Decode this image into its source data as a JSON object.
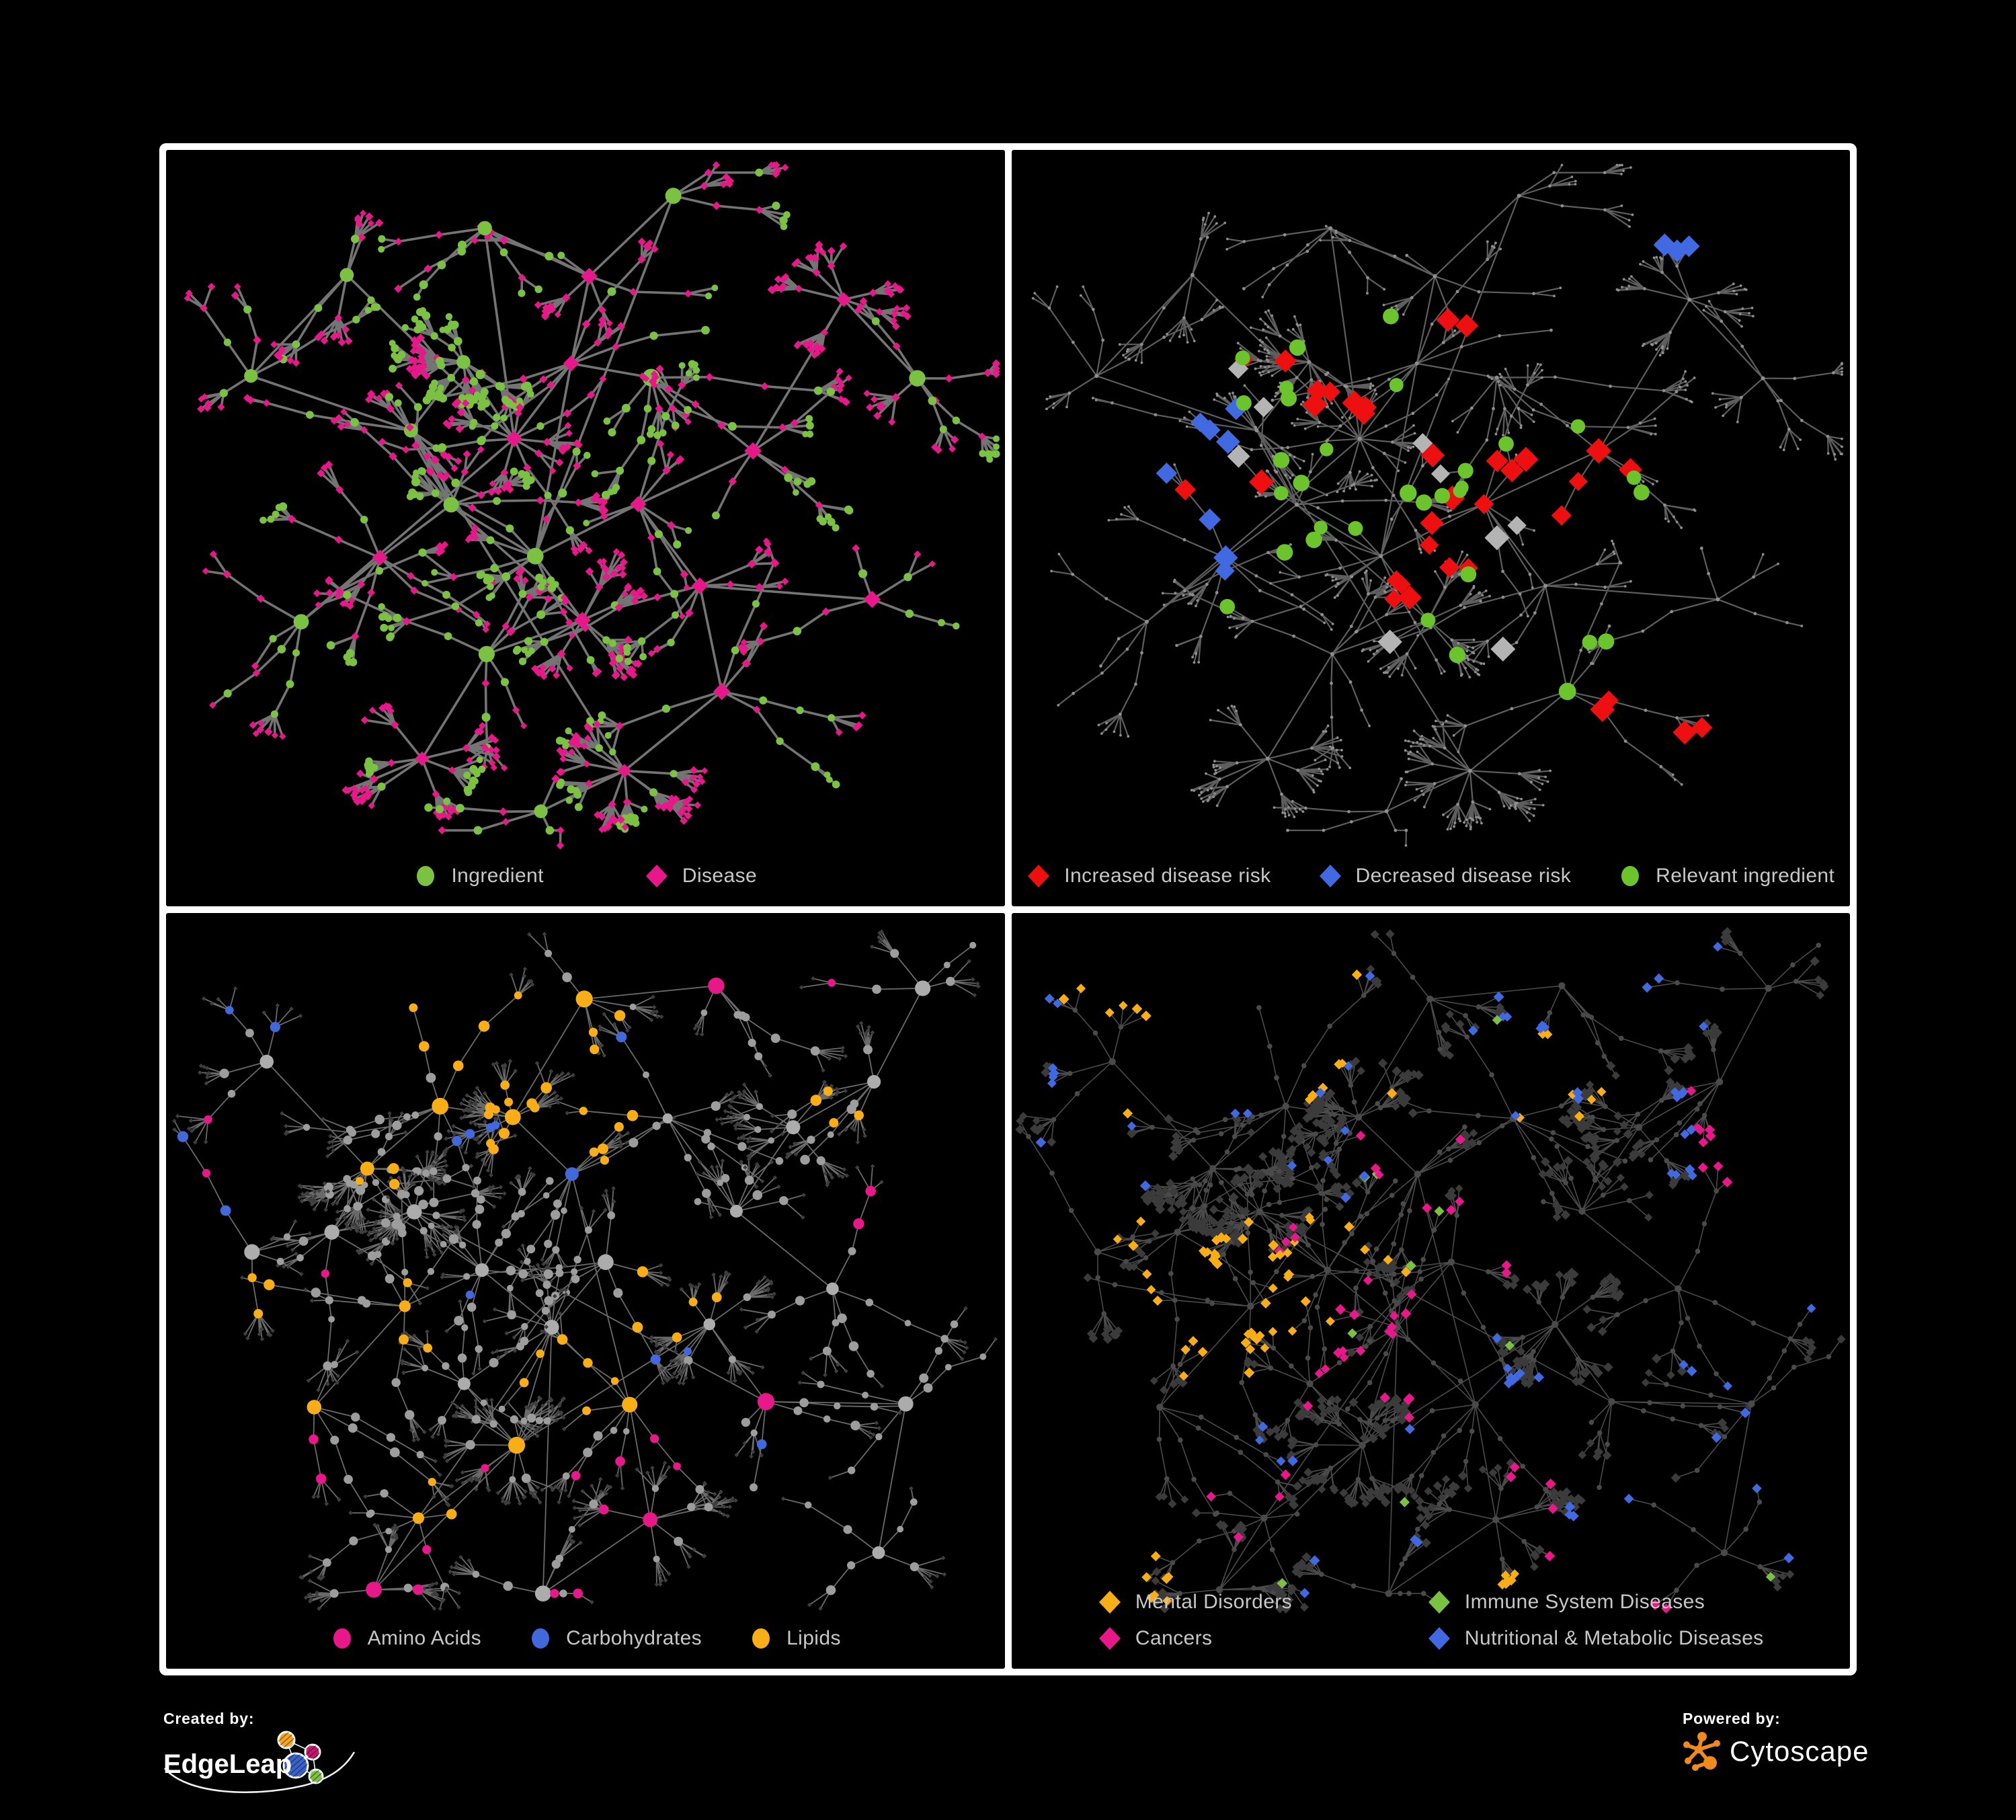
{
  "figure": {
    "background": "#000000",
    "frame_color": "#ffffff"
  },
  "footer": {
    "created_by": {
      "label": "Created by:",
      "brand": "EdgeLeap",
      "logo_colors": {
        "orange": "#F5A623",
        "magenta": "#C2186B",
        "blue": "#3A62C9",
        "green": "#7CC242"
      }
    },
    "powered_by": {
      "label": "Powered by:",
      "brand": "Cytoscape",
      "logo_color": "#EF8A1C"
    }
  },
  "layouts": {
    "A": {
      "seed": 20070,
      "cross_links": 30,
      "anchors": [
        [
          0.36,
          0.28,
          10,
          2
        ],
        [
          0.3,
          0.37,
          7,
          0
        ],
        [
          0.42,
          0.38,
          8,
          0
        ],
        [
          0.48,
          0.28,
          6,
          0
        ],
        [
          0.34,
          0.47,
          7,
          0
        ],
        [
          0.26,
          0.54,
          6,
          0
        ],
        [
          0.44,
          0.54,
          7,
          0
        ],
        [
          0.56,
          0.47,
          6,
          0
        ],
        [
          0.5,
          0.62,
          7,
          1
        ],
        [
          0.38,
          0.66,
          6,
          0
        ],
        [
          0.58,
          0.3,
          6,
          0
        ],
        [
          0.5,
          0.17,
          5,
          0
        ],
        [
          0.38,
          0.1,
          4,
          0
        ],
        [
          0.64,
          0.57,
          5,
          0
        ],
        [
          0.7,
          0.4,
          5,
          0
        ],
        [
          0.8,
          0.2,
          6,
          1
        ],
        [
          0.9,
          0.3,
          5,
          0
        ],
        [
          0.66,
          0.72,
          5,
          0
        ],
        [
          0.55,
          0.82,
          9,
          1
        ],
        [
          0.3,
          0.8,
          7,
          1
        ],
        [
          0.16,
          0.62,
          5,
          0
        ],
        [
          0.1,
          0.3,
          4,
          0
        ],
        [
          0.22,
          0.16,
          4,
          0
        ],
        [
          0.6,
          0.06,
          3,
          0
        ],
        [
          0.84,
          0.6,
          4,
          0
        ],
        [
          0.44,
          0.88,
          4,
          0
        ]
      ]
    },
    "B": {
      "seed": 77013,
      "cross_links": 40,
      "anchors": [
        [
          0.24,
          0.33,
          9,
          2
        ],
        [
          0.3,
          0.4,
          8,
          2
        ],
        [
          0.2,
          0.42,
          7,
          0
        ],
        [
          0.33,
          0.25,
          7,
          0
        ],
        [
          0.42,
          0.27,
          9,
          2
        ],
        [
          0.48,
          0.35,
          7,
          0
        ],
        [
          0.38,
          0.47,
          8,
          0
        ],
        [
          0.28,
          0.52,
          6,
          0
        ],
        [
          0.46,
          0.55,
          7,
          0
        ],
        [
          0.52,
          0.46,
          6,
          0
        ],
        [
          0.42,
          0.7,
          10,
          1
        ],
        [
          0.35,
          0.62,
          6,
          0
        ],
        [
          0.55,
          0.65,
          6,
          0
        ],
        [
          0.6,
          0.28,
          6,
          0
        ],
        [
          0.68,
          0.4,
          6,
          0
        ],
        [
          0.75,
          0.28,
          6,
          1
        ],
        [
          0.85,
          0.22,
          5,
          0
        ],
        [
          0.65,
          0.55,
          7,
          1
        ],
        [
          0.72,
          0.65,
          5,
          0
        ],
        [
          0.58,
          0.8,
          6,
          1
        ],
        [
          0.3,
          0.8,
          5,
          0
        ],
        [
          0.18,
          0.65,
          5,
          0
        ],
        [
          0.1,
          0.45,
          4,
          0
        ],
        [
          0.12,
          0.2,
          4,
          0
        ],
        [
          0.5,
          0.12,
          5,
          0
        ],
        [
          0.65,
          0.1,
          4,
          0
        ],
        [
          0.8,
          0.5,
          5,
          0
        ],
        [
          0.88,
          0.65,
          4,
          0
        ],
        [
          0.45,
          0.9,
          4,
          0
        ],
        [
          0.25,
          0.9,
          4,
          1
        ],
        [
          0.9,
          0.1,
          4,
          0
        ],
        [
          0.85,
          0.85,
          4,
          0
        ]
      ]
    }
  },
  "panels": [
    {
      "name": "ingredient-disease-network",
      "legend_style": "row2",
      "legend": [
        {
          "shape": "circle",
          "color": "#7CC242",
          "label": "Ingredient"
        },
        {
          "shape": "diamond",
          "color": "#E8178A",
          "label": "Disease"
        }
      ],
      "network": {
        "layout": "A",
        "style": "primary",
        "colors": {
          "ingredient": "#7CC242",
          "disease": "#E8178A",
          "edge": "#7A7A7A"
        }
      }
    },
    {
      "name": "disease-risk-network",
      "legend_style": "row3",
      "legend": [
        {
          "shape": "diamond",
          "color": "#EE1010",
          "label": "Increased disease risk"
        },
        {
          "shape": "diamond",
          "color": "#4169E1",
          "label": "Decreased disease risk"
        },
        {
          "shape": "circle",
          "color": "#6CC42C",
          "label": "Relevant ingredient"
        }
      ],
      "network": {
        "layout": "A",
        "style": "dim",
        "colors": {
          "node": "#8E8E8E",
          "edge": "#6E6E6E"
        },
        "highlights": [
          {
            "shape": "diamond",
            "color": "#EE1010",
            "count": 34,
            "spread": 0.05,
            "centers": [
              [
                0.44,
                0.33
              ],
              [
                0.52,
                0.4
              ],
              [
                0.38,
                0.3
              ],
              [
                0.6,
                0.42
              ],
              [
                0.48,
                0.5
              ],
              [
                0.55,
                0.57
              ],
              [
                0.31,
                0.33
              ],
              [
                0.68,
                0.46
              ],
              [
                0.44,
                0.6
              ],
              [
                0.75,
                0.73
              ],
              [
                0.8,
                0.78
              ],
              [
                0.63,
                0.44
              ],
              [
                0.28,
                0.44
              ],
              [
                0.52,
                0.28
              ]
            ]
          },
          {
            "shape": "diamond",
            "color": "#4169E1",
            "count": 12,
            "spread": 0.03,
            "centers": [
              [
                0.22,
                0.35
              ],
              [
                0.24,
                0.4
              ],
              [
                0.2,
                0.46
              ],
              [
                0.8,
                0.085
              ],
              [
                0.82,
                0.09
              ],
              [
                0.26,
                0.52
              ]
            ]
          },
          {
            "shape": "diamond",
            "color": "#B4B4B4",
            "count": 9,
            "spread": 0.04,
            "centers": [
              [
                0.3,
                0.38
              ],
              [
                0.5,
                0.42
              ],
              [
                0.56,
                0.48
              ],
              [
                0.58,
                0.68
              ],
              [
                0.46,
                0.62
              ],
              [
                0.24,
                0.31
              ]
            ]
          },
          {
            "shape": "circle",
            "color": "#6CC42C",
            "count": 32,
            "spread": 0.06,
            "centers": [
              [
                0.34,
                0.3
              ],
              [
                0.44,
                0.4
              ],
              [
                0.5,
                0.45
              ],
              [
                0.38,
                0.46
              ],
              [
                0.55,
                0.36
              ],
              [
                0.3,
                0.56
              ],
              [
                0.66,
                0.62
              ],
              [
                0.73,
                0.4
              ],
              [
                0.28,
                0.26
              ],
              [
                0.57,
                0.52
              ],
              [
                0.46,
                0.68
              ],
              [
                0.35,
                0.38
              ]
            ]
          }
        ]
      }
    },
    {
      "name": "nutrient-group-network",
      "legend_style": "row3",
      "legend": [
        {
          "shape": "circle",
          "color": "#E8178A",
          "label": "Amino Acids"
        },
        {
          "shape": "circle",
          "color": "#4169DB",
          "label": "Carbohydrates"
        },
        {
          "shape": "circle",
          "color": "#F9AE17",
          "label": "Lipids"
        }
      ],
      "network": {
        "layout": "B",
        "style": "groups",
        "colors": {
          "circle": "#9D9D9D",
          "hub": "#ACACAC",
          "leaf": "#3E3E3E",
          "edge": "#979797"
        },
        "highlights": [
          {
            "shape": "circle",
            "color": "#F9AE17",
            "count": 60,
            "spread": 0.035,
            "centers": [
              [
                0.45,
                0.22
              ],
              [
                0.5,
                0.27
              ],
              [
                0.42,
                0.3
              ],
              [
                0.38,
                0.22
              ],
              [
                0.48,
                0.17
              ],
              [
                0.28,
                0.08
              ],
              [
                0.5,
                0.62
              ],
              [
                0.53,
                0.58
              ],
              [
                0.25,
                0.35
              ],
              [
                0.6,
                0.5
              ],
              [
                0.3,
                0.55
              ],
              [
                0.05,
                0.6
              ],
              [
                0.35,
                0.75
              ],
              [
                0.8,
                0.25
              ]
            ]
          },
          {
            "shape": "circle",
            "color": "#E8178A",
            "count": 22,
            "spread": 0.03,
            "centers": [
              [
                0.06,
                0.3
              ],
              [
                0.73,
                0.05
              ],
              [
                0.9,
                0.42
              ],
              [
                0.12,
                0.7
              ],
              [
                0.35,
                0.8
              ],
              [
                0.52,
                0.72
              ],
              [
                0.56,
                0.78
              ],
              [
                0.6,
                0.68
              ],
              [
                0.28,
                0.92
              ],
              [
                0.48,
                0.92
              ],
              [
                0.75,
                0.6
              ],
              [
                0.2,
                0.48
              ]
            ]
          },
          {
            "shape": "circle",
            "color": "#4169DB",
            "count": 14,
            "spread": 0.025,
            "centers": [
              [
                0.44,
                0.22
              ],
              [
                0.46,
                0.26
              ],
              [
                0.4,
                0.26
              ],
              [
                0.17,
                0.12
              ],
              [
                0.03,
                0.33
              ],
              [
                0.6,
                0.6
              ],
              [
                0.33,
                0.48
              ],
              [
                0.75,
                0.75
              ]
            ]
          }
        ]
      }
    },
    {
      "name": "disease-category-network",
      "legend_style": "grid2",
      "legend": [
        {
          "shape": "diamond",
          "color": "#F9AE17",
          "label": "Mental Disorders"
        },
        {
          "shape": "diamond",
          "color": "#7CC242",
          "label": "Immune System Diseases"
        },
        {
          "shape": "diamond",
          "color": "#E8178A",
          "label": "Cancers"
        },
        {
          "shape": "diamond",
          "color": "#4169E1",
          "label": "Nutritional & Metabolic Diseases"
        }
      ],
      "network": {
        "layout": "B",
        "style": "categories",
        "colors": {
          "leaf": "#3B3B3B",
          "node": "#4A4A4A",
          "edge": "#717171"
        },
        "highlights": [
          {
            "shape": "diamond",
            "color": "#F9AE17",
            "count": 85,
            "spread": 0.05,
            "centers": [
              [
                0.25,
                0.47
              ],
              [
                0.22,
                0.52
              ],
              [
                0.29,
                0.43
              ],
              [
                0.18,
                0.45
              ],
              [
                0.27,
                0.57
              ],
              [
                0.33,
                0.5
              ],
              [
                0.16,
                0.12
              ],
              [
                0.35,
                0.18
              ],
              [
                0.63,
                0.25
              ],
              [
                0.4,
                0.42
              ],
              [
                0.58,
                0.92
              ],
              [
                0.15,
                0.9
              ]
            ]
          },
          {
            "shape": "diamond",
            "color": "#E8178A",
            "count": 55,
            "spread": 0.045,
            "centers": [
              [
                0.42,
                0.58
              ],
              [
                0.46,
                0.54
              ],
              [
                0.38,
                0.62
              ],
              [
                0.5,
                0.6
              ],
              [
                0.93,
                0.3
              ],
              [
                0.9,
                0.26
              ],
              [
                0.55,
                0.42
              ],
              [
                0.48,
                0.3
              ],
              [
                0.3,
                0.78
              ],
              [
                0.58,
                0.78
              ],
              [
                0.75,
                0.95
              ],
              [
                0.35,
                0.45
              ]
            ]
          },
          {
            "shape": "diamond",
            "color": "#4169E1",
            "count": 75,
            "spread": 0.045,
            "centers": [
              [
                0.57,
                0.62
              ],
              [
                0.6,
                0.57
              ],
              [
                0.63,
                0.2
              ],
              [
                0.6,
                0.12
              ],
              [
                0.1,
                0.18
              ],
              [
                0.06,
                0.27
              ],
              [
                0.3,
                0.12
              ],
              [
                0.4,
                0.33
              ],
              [
                0.76,
                0.06
              ],
              [
                0.8,
                0.3
              ],
              [
                0.85,
                0.25
              ],
              [
                0.88,
                0.55
              ],
              [
                0.3,
                0.7
              ],
              [
                0.45,
                0.88
              ],
              [
                0.65,
                0.8
              ],
              [
                0.92,
                0.75
              ]
            ]
          },
          {
            "shape": "diamond",
            "color": "#7CC242",
            "count": 10,
            "spread": 0.02,
            "centers": [
              [
                0.48,
                0.35
              ],
              [
                0.55,
                0.45
              ],
              [
                0.35,
                0.55
              ],
              [
                0.62,
                0.55
              ],
              [
                0.45,
                0.78
              ],
              [
                0.3,
                0.88
              ],
              [
                0.58,
                0.13
              ],
              [
                0.85,
                0.9
              ]
            ]
          }
        ]
      }
    }
  ]
}
